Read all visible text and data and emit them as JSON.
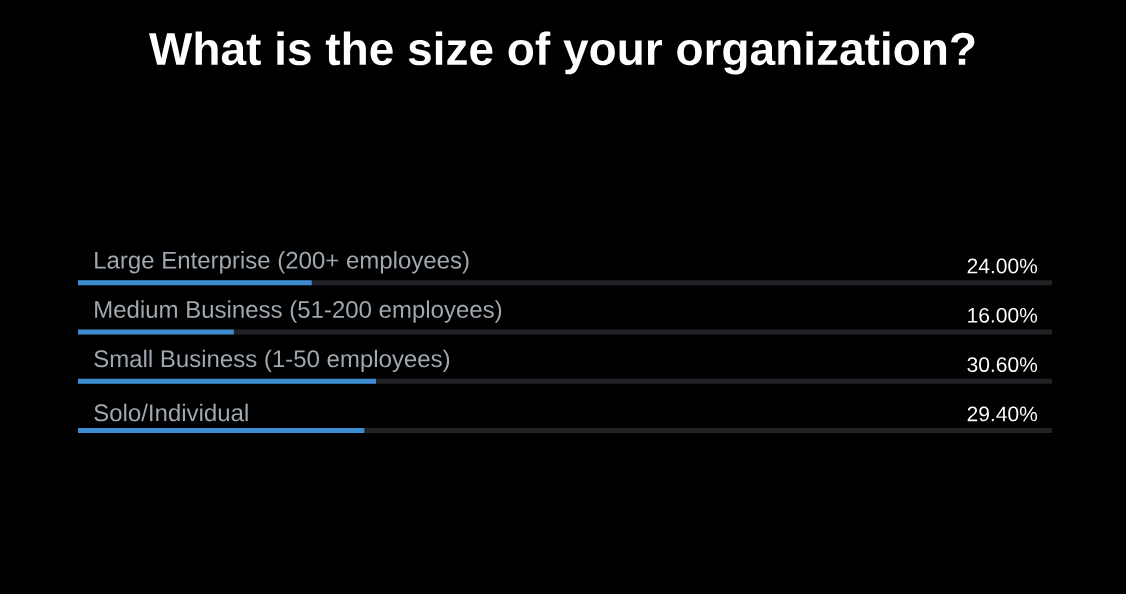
{
  "chart_data": {
    "type": "bar",
    "orientation": "horizontal",
    "title": "What is the size of your organization?",
    "categories": [
      "Large Enterprise (200+ employees)",
      "Medium Business (51-200 employees)",
      "Small Business (1-50 employees)",
      "Solo/Individual"
    ],
    "values": [
      24.0,
      16.0,
      30.6,
      29.4
    ],
    "value_labels": [
      "24.00%",
      "16.00%",
      "30.60%",
      "29.40%"
    ],
    "color": "#3d8bd0",
    "xlim": [
      0,
      100
    ],
    "grid": "y"
  }
}
